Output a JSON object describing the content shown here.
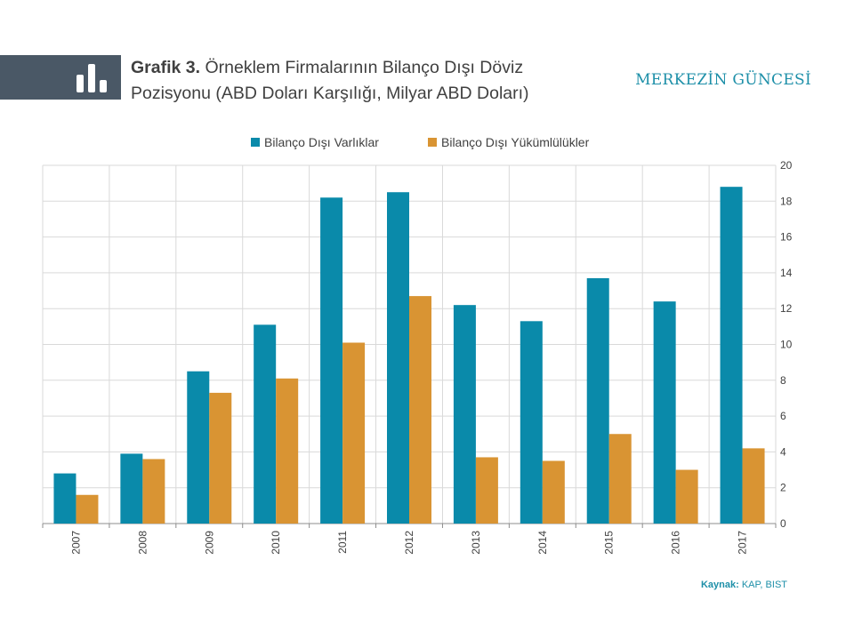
{
  "header": {
    "title_prefix": "Grafik 3.",
    "title_line1": "Örneklem Firmalarının Bilanço Dışı Döviz",
    "title_line2": "Pozisyonu (ABD Doları Karşılığı, Milyar ABD Doları)",
    "brand": "MERKEZİN GÜNCESİ",
    "icon": "bar-chart-icon"
  },
  "footer": {
    "source_label": "Kaynak:",
    "source_value": "KAP, BIST"
  },
  "chart_data": {
    "type": "bar",
    "categories": [
      "2007",
      "2008",
      "2009",
      "2010",
      "2011",
      "2012",
      "2013",
      "2014",
      "2015",
      "2016",
      "2017"
    ],
    "series": [
      {
        "name": "Bilanço Dışı Varlıklar",
        "color": "#0a8aaa",
        "values": [
          2.8,
          3.9,
          8.5,
          11.1,
          18.2,
          18.5,
          12.2,
          11.3,
          13.7,
          12.4,
          18.8
        ]
      },
      {
        "name": "Bilanço Dışı Yükümlülükler",
        "color": "#d99433",
        "values": [
          1.6,
          3.6,
          7.3,
          8.1,
          10.1,
          12.7,
          3.7,
          3.5,
          5.0,
          3.0,
          4.2
        ]
      }
    ],
    "ylim": [
      0,
      20
    ],
    "yticks": [
      0,
      2,
      4,
      6,
      8,
      10,
      12,
      14,
      16,
      18,
      20
    ],
    "y_axis_side": "right",
    "grid": true,
    "legend_position": "top"
  }
}
